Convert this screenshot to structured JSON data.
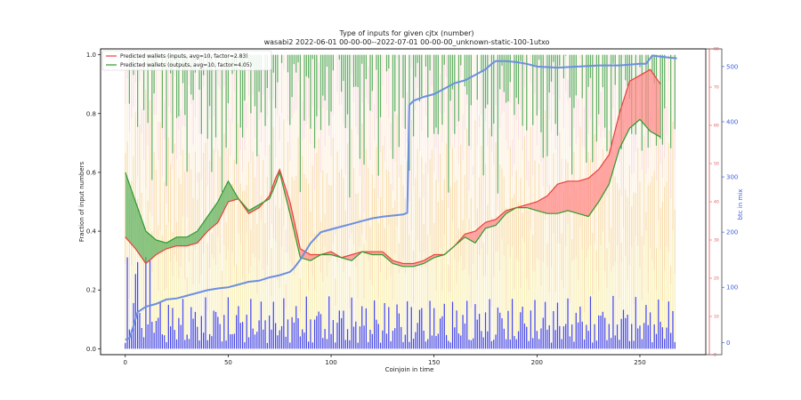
{
  "chart_data": {
    "type": "line",
    "title": "Type of inputs for given cjtx (number)",
    "subtitle": "wasabi2 2022-06-01 00-00-00--2022-07-01 00-00-00_unknown-static-100-1utxo",
    "xlabel": "Coinjoin in time",
    "ylabel": "Fraction of input numbers",
    "y2label": "btc in mix",
    "xlim": [
      -12,
      282
    ],
    "ylim": [
      -0.02,
      1.02
    ],
    "y2lim": [
      -22,
      532
    ],
    "y3lim": [
      0,
      80
    ],
    "xticks": [
      0,
      50,
      100,
      150,
      200,
      250
    ],
    "yticks": [
      0.0,
      0.2,
      0.4,
      0.6,
      0.8,
      1.0
    ],
    "y2ticks": [
      0,
      100,
      200,
      300,
      400,
      500
    ],
    "y3ticks": [
      0,
      10,
      20,
      30,
      40,
      50,
      60,
      70,
      80
    ],
    "legend_position": "top-left",
    "legend": [
      "Predicted wallets (inputs, avg=10, factor=2.83)",
      "Predicted wallets (outputs, avg=10, factor=4.05)"
    ],
    "colors": {
      "inputs": "#e8413a",
      "outputs": "#2e9a2e",
      "btc": "#6b8fe0",
      "bar_blue": "#3333dd",
      "bar_yellow": "#f3e27a",
      "bar_orange": "#f0b347",
      "bar_cream": "#fbe6c6",
      "bar_pink": "#f2b6b6",
      "bar_green": "#3c9a3c",
      "axis_red": "#e05555",
      "axis_blue": "#4060d8"
    },
    "series": [
      {
        "name": "Predicted wallets (inputs, avg=10, factor=2.83)",
        "x": [
          0,
          5,
          10,
          15,
          20,
          25,
          30,
          35,
          40,
          45,
          50,
          55,
          60,
          65,
          70,
          73,
          75,
          80,
          85,
          90,
          95,
          100,
          105,
          110,
          115,
          120,
          125,
          130,
          135,
          140,
          145,
          150,
          155,
          160,
          165,
          170,
          175,
          180,
          185,
          190,
          195,
          200,
          205,
          210,
          215,
          220,
          225,
          230,
          235,
          240,
          245,
          250,
          255,
          260
        ],
        "values": [
          0.38,
          0.34,
          0.29,
          0.32,
          0.34,
          0.35,
          0.35,
          0.36,
          0.4,
          0.43,
          0.5,
          0.51,
          0.46,
          0.48,
          0.52,
          0.58,
          0.61,
          0.5,
          0.34,
          0.32,
          0.32,
          0.33,
          0.31,
          0.32,
          0.33,
          0.33,
          0.33,
          0.3,
          0.29,
          0.29,
          0.3,
          0.32,
          0.32,
          0.35,
          0.39,
          0.4,
          0.43,
          0.44,
          0.47,
          0.48,
          0.49,
          0.5,
          0.52,
          0.56,
          0.57,
          0.57,
          0.58,
          0.61,
          0.66,
          0.8,
          0.91,
          0.93,
          0.95,
          0.9
        ]
      },
      {
        "name": "Predicted wallets (outputs, avg=10, factor=4.05)",
        "x": [
          0,
          5,
          10,
          15,
          20,
          25,
          30,
          35,
          40,
          45,
          50,
          55,
          60,
          65,
          70,
          73,
          75,
          80,
          85,
          90,
          95,
          100,
          105,
          110,
          115,
          120,
          125,
          130,
          135,
          140,
          145,
          150,
          155,
          160,
          165,
          170,
          175,
          180,
          185,
          190,
          195,
          200,
          205,
          210,
          215,
          220,
          225,
          230,
          235,
          240,
          245,
          250,
          255,
          260
        ],
        "values": [
          0.6,
          0.5,
          0.4,
          0.37,
          0.36,
          0.38,
          0.38,
          0.4,
          0.45,
          0.5,
          0.57,
          0.51,
          0.47,
          0.49,
          0.51,
          0.56,
          0.6,
          0.46,
          0.31,
          0.3,
          0.32,
          0.32,
          0.31,
          0.3,
          0.33,
          0.32,
          0.32,
          0.29,
          0.28,
          0.28,
          0.29,
          0.31,
          0.32,
          0.35,
          0.38,
          0.36,
          0.41,
          0.42,
          0.46,
          0.48,
          0.48,
          0.47,
          0.46,
          0.46,
          0.47,
          0.46,
          0.45,
          0.5,
          0.56,
          0.68,
          0.75,
          0.78,
          0.74,
          0.72
        ]
      },
      {
        "name": "btc in mix",
        "axis": "right",
        "x": [
          0,
          2,
          4,
          6,
          10,
          15,
          20,
          25,
          30,
          35,
          40,
          45,
          50,
          55,
          60,
          65,
          70,
          75,
          80,
          82,
          85,
          90,
          95,
          100,
          105,
          110,
          115,
          120,
          125,
          130,
          135,
          137,
          138,
          140,
          145,
          150,
          155,
          160,
          165,
          170,
          175,
          178,
          180,
          185,
          190,
          195,
          200,
          210,
          220,
          230,
          240,
          250,
          253,
          256,
          262,
          268
        ],
        "values": [
          5,
          8,
          30,
          55,
          65,
          70,
          78,
          80,
          85,
          90,
          95,
          98,
          100,
          105,
          110,
          112,
          118,
          122,
          128,
          135,
          150,
          180,
          200,
          205,
          210,
          215,
          220,
          225,
          228,
          230,
          232,
          235,
          430,
          438,
          445,
          450,
          460,
          470,
          475,
          485,
          495,
          505,
          510,
          510,
          508,
          505,
          500,
          498,
          500,
          502,
          502,
          505,
          505,
          520,
          517,
          515
        ]
      }
    ]
  }
}
